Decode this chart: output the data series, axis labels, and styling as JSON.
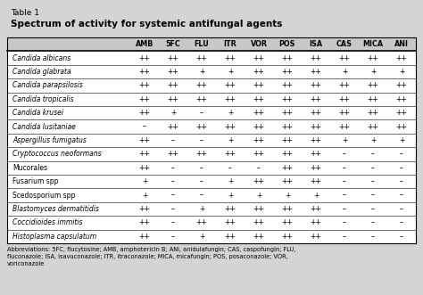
{
  "title_line1": "Table 1",
  "title_line2": "Spectrum of activity for systemic antifungal agents",
  "columns": [
    "AMB",
    "5FC",
    "FLU",
    "ITR",
    "VOR",
    "POS",
    "ISA",
    "CAS",
    "MICA",
    "ANI"
  ],
  "rows": [
    [
      "Candida albicans",
      "++",
      "++",
      "++",
      "++",
      "++",
      "++",
      "++",
      "++",
      "++",
      "++"
    ],
    [
      "Candida glabrata",
      "++",
      "++",
      "+",
      "+",
      "++",
      "++",
      "++",
      "+",
      "+",
      "+"
    ],
    [
      "Candida parapsilosis",
      "++",
      "++",
      "++",
      "++",
      "++",
      "++",
      "++",
      "++",
      "++",
      "++"
    ],
    [
      "Candida tropicalis",
      "++",
      "++",
      "++",
      "++",
      "++",
      "++",
      "++",
      "++",
      "++",
      "++"
    ],
    [
      "Candida krusei",
      "++",
      "+",
      "–",
      "+",
      "++",
      "++",
      "++",
      "++",
      "++",
      "++"
    ],
    [
      "Candida lusitaniae",
      "–",
      "++",
      "++",
      "++",
      "++",
      "++",
      "++",
      "++",
      "++",
      "++"
    ],
    [
      "Aspergillus fumigatus",
      "++",
      "–",
      "–",
      "+",
      "++",
      "++",
      "++",
      "+",
      "+",
      "+"
    ],
    [
      "Cryptococcus neoformans",
      "++",
      "++",
      "++",
      "++",
      "++",
      "++",
      "++",
      "–",
      "–",
      "–"
    ],
    [
      "Mucorales",
      "++",
      "–",
      "–",
      "–",
      "–",
      "++",
      "++",
      "–",
      "–",
      "–"
    ],
    [
      "Fusarium spp",
      "+",
      "–",
      "–",
      "+",
      "++",
      "++",
      "++",
      "–",
      "–",
      "–"
    ],
    [
      "Scedosporium spp",
      "+",
      "–",
      "–",
      "+",
      "+",
      "+",
      "+",
      "–",
      "–",
      "–"
    ],
    [
      "Blastomyces dermatitidis",
      "++",
      "–",
      "+",
      "++",
      "++",
      "++",
      "++",
      "–",
      "–",
      "–"
    ],
    [
      "Coccidioides immitis",
      "++",
      "–",
      "++",
      "++",
      "++",
      "++",
      "++",
      "–",
      "–",
      "–"
    ],
    [
      "Histoplasma capsulatum",
      "++",
      "–",
      "+",
      "++",
      "++",
      "++",
      "++",
      "–",
      "–",
      "–"
    ]
  ],
  "italic_rows": [
    0,
    1,
    2,
    3,
    4,
    5,
    6,
    7,
    11,
    12,
    13
  ],
  "footnote": "Abbreviations: 5FC, flucytosine; AMB, amphotericin B; ANI, anidulafungin; CAS, caspofungin; FLU,\nfluconazole; ISA, isavuconazole; ITR, itraconazole; MICA, micafungin; POS, posaconazole; VOR,\nvoriconazole",
  "header_bg": "#c8c8c8",
  "table_bg": "#ffffff",
  "outer_bg": "#d4d4d4",
  "line_color": "#000000",
  "text_color": "#000000",
  "title_bg": "#d4d4d4"
}
